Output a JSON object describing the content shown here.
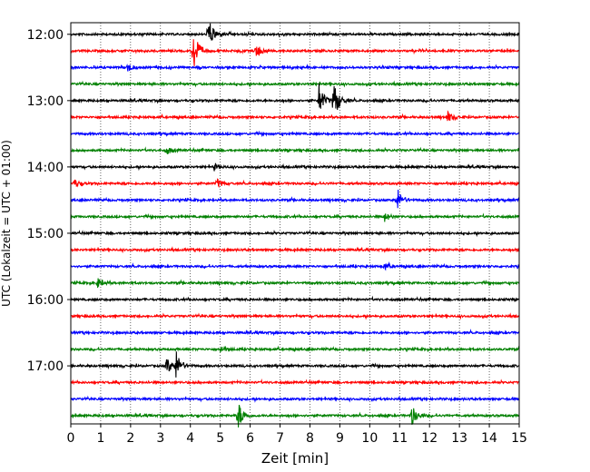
{
  "chart_data": {
    "type": "line",
    "title": "",
    "xlabel": "Zeit  [min]",
    "ylabel": "UTC (Lokalzeit = UTC + 01:00)",
    "xlim": [
      0,
      15
    ],
    "xticks": [
      "0",
      "1",
      "2",
      "3",
      "4",
      "5",
      "6",
      "7",
      "8",
      "9",
      "10",
      "11",
      "12",
      "13",
      "14",
      "15"
    ],
    "ylim_rows": [
      -0.7,
      23.5
    ],
    "yticks": [
      {
        "row": 0,
        "label": "12:00"
      },
      {
        "row": 4,
        "label": "13:00"
      },
      {
        "row": 8,
        "label": "14:00"
      },
      {
        "row": 12,
        "label": "15:00"
      },
      {
        "row": 16,
        "label": "16:00"
      },
      {
        "row": 20,
        "label": "17:00"
      }
    ],
    "grid": "vertical dotted at each minute",
    "row_colors": [
      "#000000",
      "#ff0000",
      "#0000ff",
      "#008000"
    ],
    "rows": [
      {
        "start": "12:00",
        "events": [
          {
            "t": 4.6,
            "amp": 1.8
          }
        ]
      },
      {
        "start": "12:15",
        "events": [
          {
            "t": 4.1,
            "amp": 2.5
          },
          {
            "t": 6.2,
            "amp": 0.8
          }
        ]
      },
      {
        "start": "12:30",
        "events": [
          {
            "t": 1.9,
            "amp": 0.5
          }
        ]
      },
      {
        "start": "12:45",
        "events": []
      },
      {
        "start": "13:00",
        "events": [
          {
            "t": 8.3,
            "amp": 1.9
          },
          {
            "t": 8.8,
            "amp": 2.2
          }
        ]
      },
      {
        "start": "13:15",
        "events": [
          {
            "t": 12.6,
            "amp": 0.6
          }
        ]
      },
      {
        "start": "13:30",
        "events": []
      },
      {
        "start": "13:45",
        "events": [
          {
            "t": 3.2,
            "amp": 0.5
          }
        ]
      },
      {
        "start": "14:00",
        "events": [
          {
            "t": 4.8,
            "amp": 0.4
          }
        ]
      },
      {
        "start": "14:15",
        "events": [
          {
            "t": 0.1,
            "amp": 0.5
          },
          {
            "t": 4.9,
            "amp": 0.5
          }
        ]
      },
      {
        "start": "14:30",
        "events": [
          {
            "t": 10.9,
            "amp": 1.3
          },
          {
            "t": 15.0,
            "amp": 0.7
          }
        ]
      },
      {
        "start": "14:45",
        "events": [
          {
            "t": 10.5,
            "amp": 0.5
          }
        ]
      },
      {
        "start": "15:00",
        "events": []
      },
      {
        "start": "15:15",
        "events": []
      },
      {
        "start": "15:30",
        "events": [
          {
            "t": 10.5,
            "amp": 0.4
          }
        ]
      },
      {
        "start": "15:45",
        "events": [
          {
            "t": 0.9,
            "amp": 0.5
          }
        ]
      },
      {
        "start": "16:00",
        "events": []
      },
      {
        "start": "16:15",
        "events": []
      },
      {
        "start": "16:30",
        "events": []
      },
      {
        "start": "16:45",
        "events": [
          {
            "t": 5.0,
            "amp": 0.4
          }
        ]
      },
      {
        "start": "17:00",
        "events": [
          {
            "t": 3.2,
            "amp": 1.0
          },
          {
            "t": 3.5,
            "amp": 1.6
          }
        ]
      },
      {
        "start": "17:15",
        "events": []
      },
      {
        "start": "17:30",
        "events": []
      },
      {
        "start": "17:45",
        "events": [
          {
            "t": 5.6,
            "amp": 1.6
          },
          {
            "t": 11.4,
            "amp": 1.2
          }
        ]
      }
    ]
  }
}
